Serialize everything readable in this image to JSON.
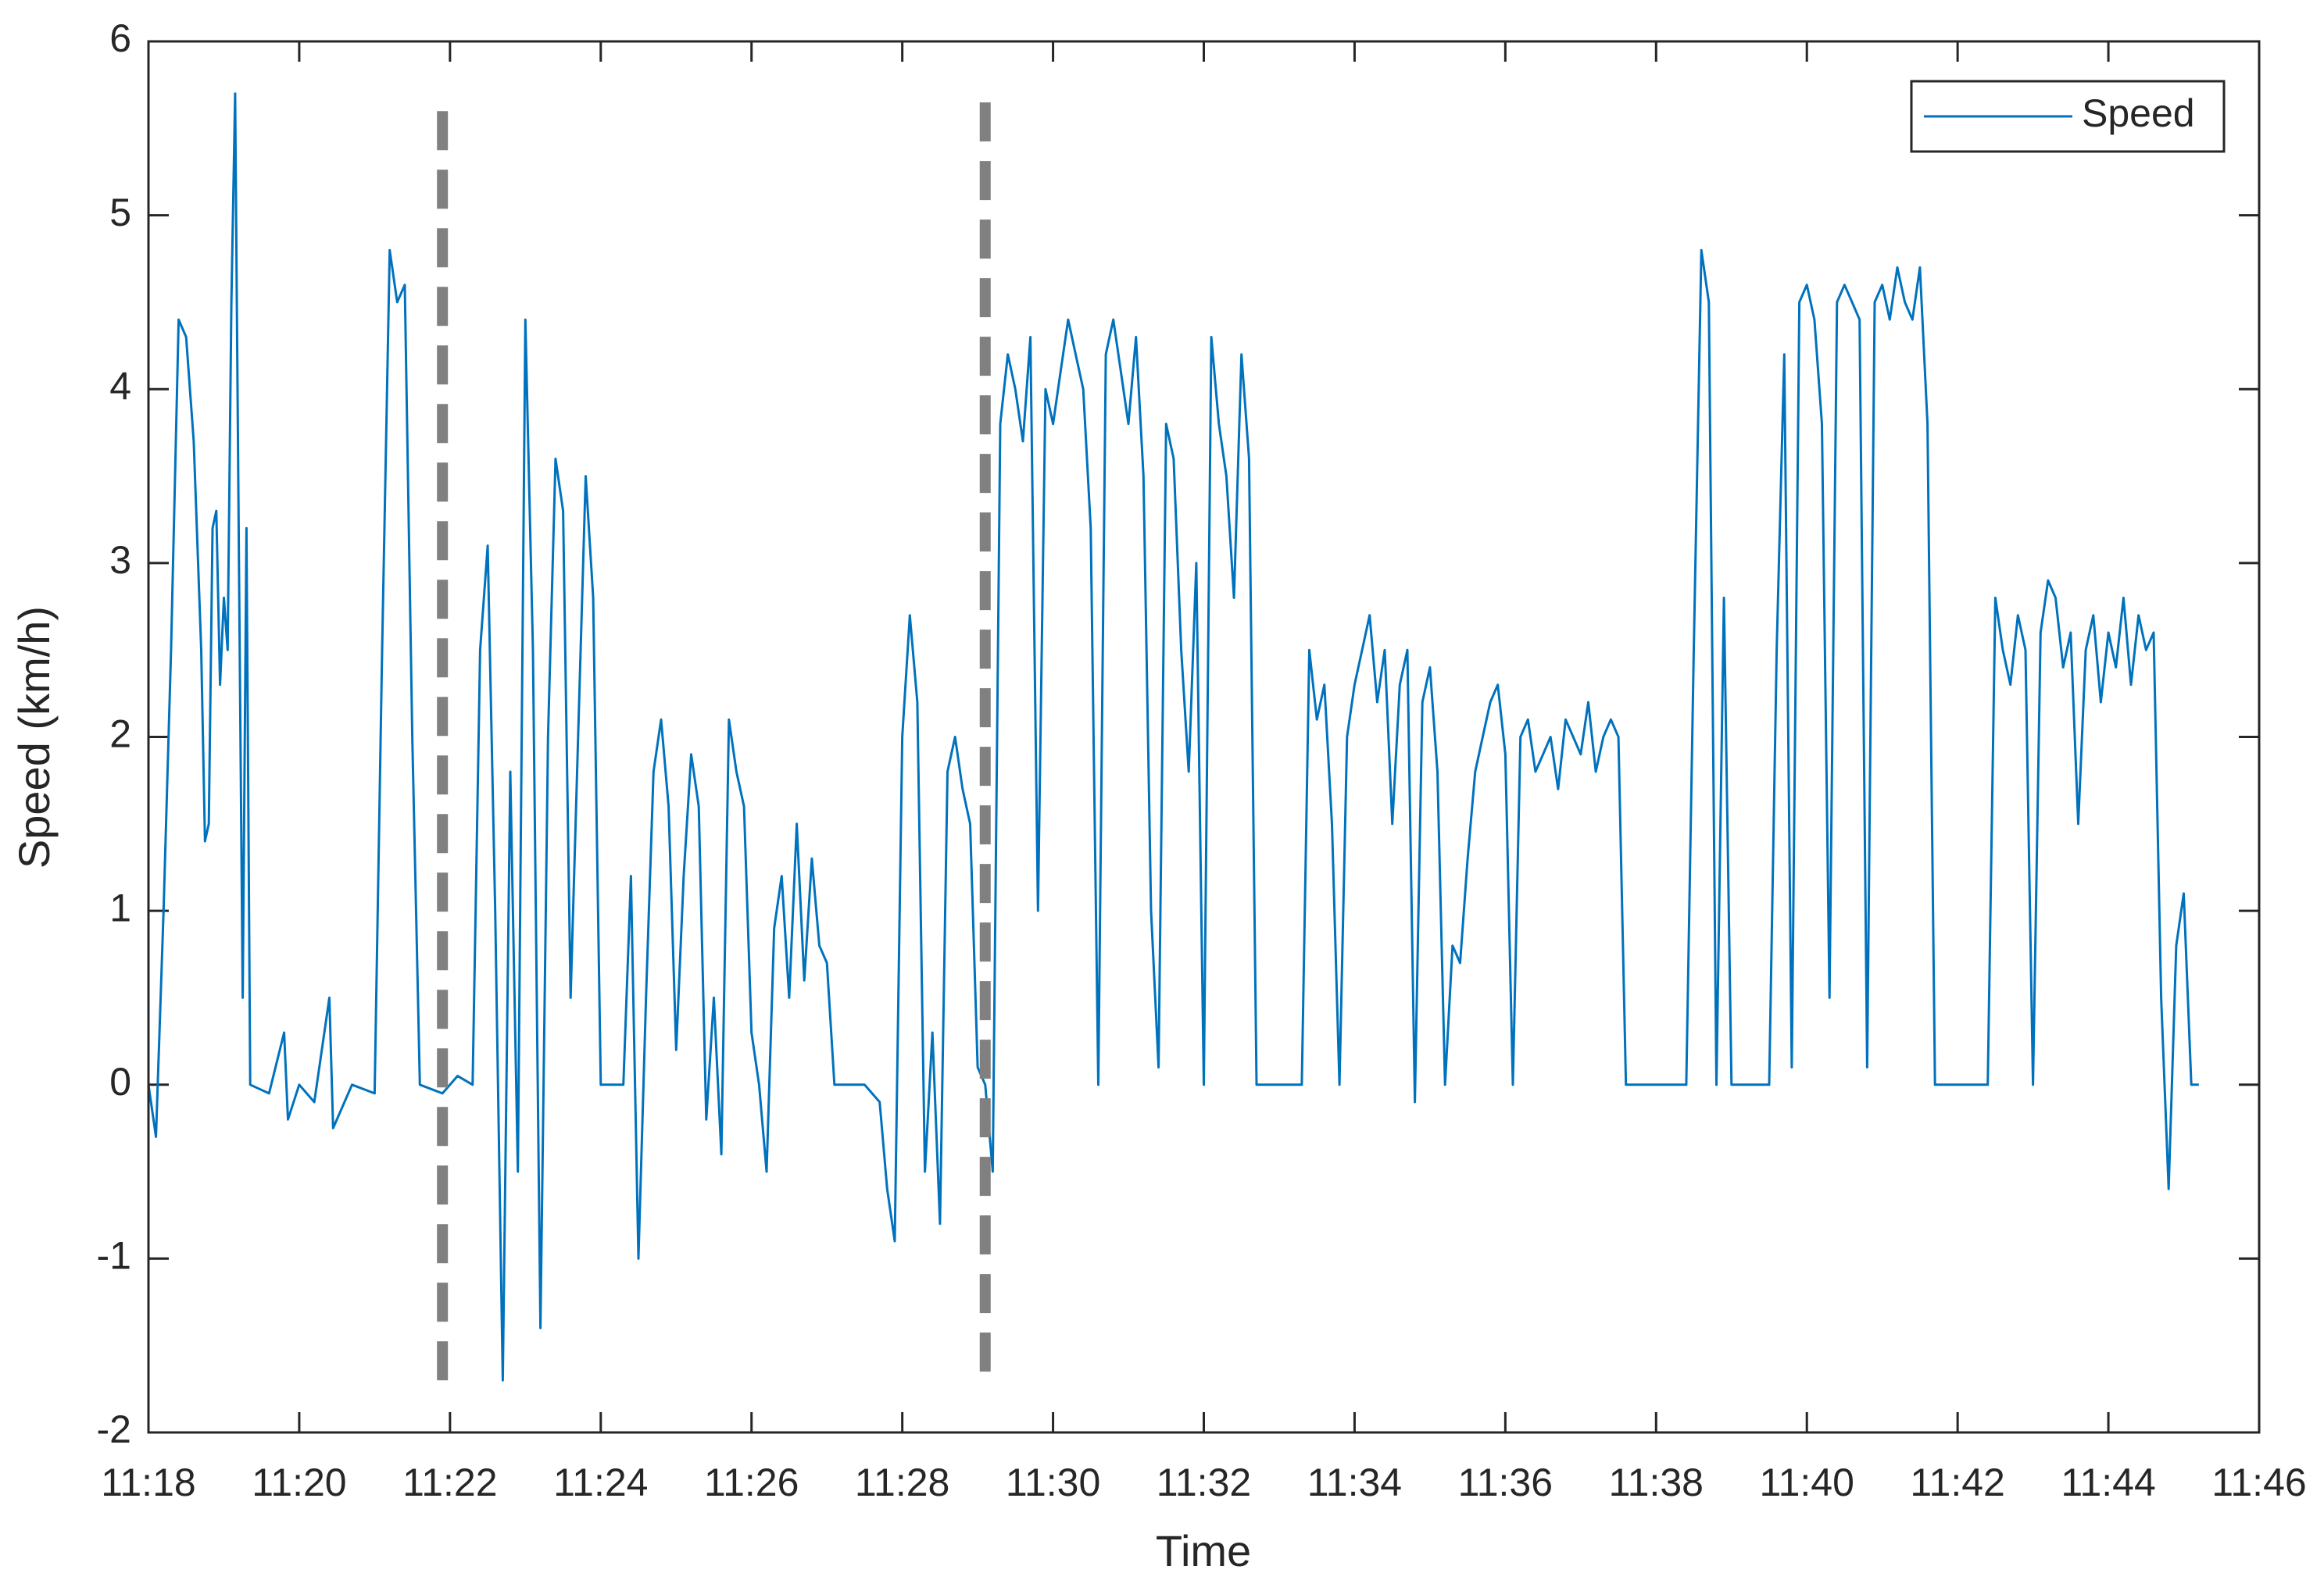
{
  "chart_data": {
    "type": "line",
    "xlabel": "Time",
    "ylabel": "Speed (km/h)",
    "xlim": [
      678,
      706
    ],
    "xticks": [
      {
        "value": 678,
        "label": "11:18"
      },
      {
        "value": 680,
        "label": "11:20"
      },
      {
        "value": 682,
        "label": "11:22"
      },
      {
        "value": 684,
        "label": "11:24"
      },
      {
        "value": 686,
        "label": "11:26"
      },
      {
        "value": 688,
        "label": "11:28"
      },
      {
        "value": 690,
        "label": "11:30"
      },
      {
        "value": 692,
        "label": "11:32"
      },
      {
        "value": 694,
        "label": "11:34"
      },
      {
        "value": 696,
        "label": "11:36"
      },
      {
        "value": 698,
        "label": "11:38"
      },
      {
        "value": 700,
        "label": "11:40"
      },
      {
        "value": 702,
        "label": "11:42"
      },
      {
        "value": 704,
        "label": "11:44"
      },
      {
        "value": 706,
        "label": "11:46"
      }
    ],
    "ylim": [
      -2,
      6
    ],
    "yticks": [
      -2,
      -1,
      0,
      1,
      2,
      3,
      4,
      5,
      6
    ],
    "grid": false,
    "legend": "upper right",
    "vlines": [
      {
        "x": 681.9,
        "y": [
          -1.7,
          5.6
        ],
        "color": "#808080"
      },
      {
        "x": 689.1,
        "y": [
          -1.65,
          5.65
        ],
        "color": "#808080"
      }
    ],
    "series": [
      {
        "name": "Speed",
        "color": "#0072bd",
        "x": [
          678.0,
          678.1,
          678.2,
          678.3,
          678.4,
          678.5,
          678.6,
          678.7,
          678.75,
          678.8,
          678.85,
          678.9,
          678.95,
          679.0,
          679.05,
          679.1,
          679.15,
          679.2,
          679.25,
          679.3,
          679.35,
          679.6,
          679.8,
          679.85,
          680.0,
          680.2,
          680.4,
          680.45,
          680.7,
          681.0,
          681.1,
          681.2,
          681.3,
          681.4,
          681.5,
          681.6,
          681.9,
          682.1,
          682.3,
          682.4,
          682.5,
          682.6,
          682.7,
          682.8,
          682.9,
          683.0,
          683.1,
          683.2,
          683.3,
          683.4,
          683.5,
          683.6,
          683.7,
          683.8,
          683.9,
          684.0,
          684.3,
          684.4,
          684.5,
          684.6,
          684.7,
          684.8,
          684.9,
          685.0,
          685.1,
          685.2,
          685.3,
          685.4,
          685.5,
          685.6,
          685.7,
          685.8,
          685.9,
          686.0,
          686.1,
          686.2,
          686.3,
          686.4,
          686.5,
          686.6,
          686.7,
          686.8,
          686.9,
          687.0,
          687.1,
          687.5,
          687.7,
          687.8,
          687.9,
          688.0,
          688.1,
          688.2,
          688.3,
          688.4,
          688.5,
          688.6,
          688.7,
          688.8,
          688.9,
          689.0,
          689.1,
          689.2,
          689.3,
          689.4,
          689.5,
          689.6,
          689.7,
          689.8,
          689.9,
          690.0,
          690.1,
          690.2,
          690.3,
          690.4,
          690.5,
          690.6,
          690.7,
          690.8,
          690.9,
          691.0,
          691.1,
          691.2,
          691.3,
          691.4,
          691.5,
          691.6,
          691.7,
          691.8,
          691.9,
          692.0,
          692.1,
          692.2,
          692.3,
          692.4,
          692.5,
          692.6,
          692.7,
          693.3,
          693.4,
          693.5,
          693.6,
          693.7,
          693.8,
          693.9,
          694.0,
          694.1,
          694.2,
          694.3,
          694.4,
          694.5,
          694.6,
          694.7,
          694.8,
          694.9,
          695.0,
          695.1,
          695.2,
          695.3,
          695.4,
          695.5,
          695.6,
          695.7,
          695.8,
          695.9,
          696.0,
          696.1,
          696.2,
          696.3,
          696.4,
          696.5,
          696.6,
          696.7,
          696.8,
          696.9,
          697.0,
          697.1,
          697.2,
          697.3,
          697.4,
          697.5,
          697.6,
          698.4,
          698.5,
          698.6,
          698.7,
          698.8,
          698.9,
          699.0,
          699.5,
          699.6,
          699.7,
          699.8,
          699.9,
          700.0,
          700.1,
          700.2,
          700.3,
          700.4,
          700.5,
          700.6,
          700.7,
          700.8,
          700.9,
          701.0,
          701.1,
          701.2,
          701.3,
          701.4,
          701.5,
          701.6,
          701.7,
          702.4,
          702.5,
          702.6,
          702.7,
          702.8,
          702.9,
          703.0,
          703.1,
          703.2,
          703.3,
          703.4,
          703.5,
          703.6,
          703.7,
          703.8,
          703.9,
          704.0,
          704.1,
          704.2,
          704.3,
          704.4,
          704.5,
          704.6,
          704.7,
          704.8,
          704.9,
          705.0,
          705.1,
          705.2
        ],
        "values": [
          0,
          -0.3,
          1.0,
          2.5,
          4.4,
          4.3,
          3.7,
          2.5,
          1.4,
          1.5,
          3.2,
          3.3,
          2.3,
          2.8,
          2.5,
          4.5,
          5.7,
          3.0,
          0.5,
          3.2,
          0.0,
          -0.05,
          0.3,
          -0.2,
          0.0,
          -0.1,
          0.5,
          -0.25,
          0.0,
          -0.05,
          2.5,
          4.8,
          4.5,
          4.6,
          2.0,
          0.0,
          -0.05,
          0.05,
          0.0,
          2.5,
          3.1,
          1.0,
          -1.7,
          1.8,
          -0.5,
          4.4,
          2.5,
          -1.4,
          2.0,
          3.6,
          3.3,
          0.5,
          2.0,
          3.5,
          2.8,
          0.0,
          0.0,
          1.2,
          -1.0,
          0.5,
          1.8,
          2.1,
          1.6,
          0.2,
          1.2,
          1.9,
          1.6,
          -0.2,
          0.5,
          -0.4,
          2.1,
          1.8,
          1.6,
          0.3,
          0.0,
          -0.5,
          0.9,
          1.2,
          0.5,
          1.5,
          0.6,
          1.3,
          0.8,
          0.7,
          0.0,
          0.0,
          -0.1,
          -0.6,
          -0.9,
          2.0,
          2.7,
          2.2,
          -0.5,
          0.3,
          -0.8,
          1.8,
          2.0,
          1.7,
          1.5,
          0.1,
          0.0,
          -0.5,
          3.8,
          4.2,
          4.0,
          3.7,
          4.3,
          1.0,
          4.0,
          3.8,
          4.1,
          4.4,
          4.2,
          4.0,
          3.2,
          0.0,
          4.2,
          4.4,
          4.1,
          3.8,
          4.3,
          3.5,
          1.0,
          0.1,
          3.8,
          3.6,
          2.5,
          1.8,
          3.0,
          0.0,
          4.3,
          3.8,
          3.5,
          2.8,
          4.2,
          3.6,
          0.0,
          0.0,
          2.5,
          2.1,
          2.3,
          1.5,
          0.0,
          2.0,
          2.3,
          2.5,
          2.7,
          2.2,
          2.5,
          1.5,
          2.3,
          2.5,
          -0.1,
          2.2,
          2.4,
          1.8,
          0.0,
          0.8,
          0.7,
          1.3,
          1.8,
          2.0,
          2.2,
          2.3,
          1.9,
          0.0,
          2.0,
          2.1,
          1.8,
          1.9,
          2.0,
          1.7,
          2.1,
          2.0,
          1.9,
          2.2,
          1.8,
          2.0,
          2.1,
          2.0,
          0.0,
          0.0,
          2.5,
          4.8,
          4.5,
          0.0,
          2.8,
          0.0,
          0.0,
          2.5,
          4.2,
          0.1,
          4.5,
          4.6,
          4.4,
          3.8,
          0.5,
          4.5,
          4.6,
          4.5,
          4.4,
          0.1,
          4.5,
          4.6,
          4.4,
          4.7,
          4.5,
          4.4,
          4.7,
          3.8,
          0.0,
          0.0,
          2.8,
          2.5,
          2.3,
          2.7,
          2.5,
          0.0,
          2.6,
          2.9,
          2.8,
          2.4,
          2.6,
          1.5,
          2.5,
          2.7,
          2.2,
          2.6,
          2.4,
          2.8,
          2.3,
          2.7,
          2.5,
          2.6,
          0.5,
          -0.6,
          0.8,
          1.1,
          0.0,
          0.0
        ]
      }
    ]
  }
}
